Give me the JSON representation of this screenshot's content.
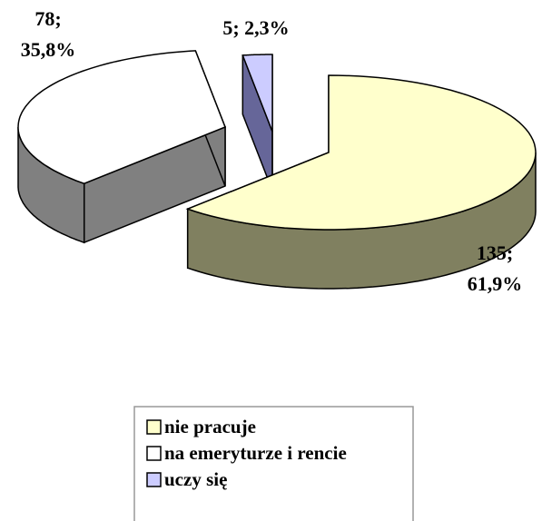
{
  "chart_data": {
    "type": "pie3d",
    "categories": [
      "nie pracuje",
      "na emeryturze i rencie",
      "uczy się"
    ],
    "values": [
      135,
      78,
      5
    ],
    "value_labels": [
      "135; 61,9%",
      "78; 35,8%",
      "5; 2,3%"
    ],
    "colors": [
      "#ffffcc",
      "#ffffff",
      "#ccccff"
    ],
    "side_colors": [
      "#808060",
      "#808080",
      "#666699"
    ],
    "legend": "bottom"
  }
}
